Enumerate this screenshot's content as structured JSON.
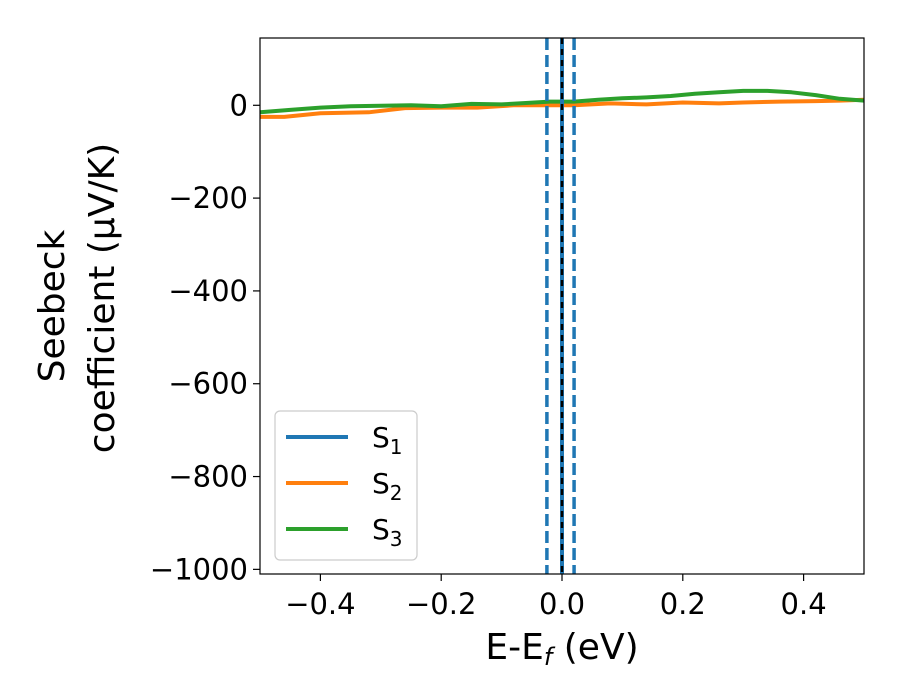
{
  "chart_data": {
    "type": "line",
    "xlabel": "E-E",
    "xlabel_sub": "f",
    "xlabel_unit": " (eV)",
    "ylabel_line1": "Seebeck",
    "ylabel_line2": "coefficient  (μV/K)",
    "xlim": [
      -0.5,
      0.5
    ],
    "ylim": [
      -1010,
      145
    ],
    "x_ticks": [
      -0.4,
      -0.2,
      0.0,
      0.2,
      0.4
    ],
    "x_tick_labels": [
      "−0.4",
      "−0.2",
      "0.0",
      "0.2",
      "0.4"
    ],
    "y_ticks": [
      0,
      -200,
      -400,
      -600,
      -800,
      -1000
    ],
    "y_tick_labels": [
      "0",
      "−200",
      "−400",
      "−600",
      "−800",
      "−1000"
    ],
    "grid": false,
    "legend_position": "lower-left",
    "series": [
      {
        "name": "S",
        "name_sub": "1",
        "color": "#1f77b4",
        "x": [],
        "y": []
      },
      {
        "name": "S",
        "name_sub": "2",
        "color": "#ff7f0e",
        "x": [
          -0.5,
          -0.46,
          -0.4,
          -0.32,
          -0.26,
          -0.2,
          -0.14,
          -0.08,
          -0.02,
          0.02,
          0.08,
          0.14,
          0.2,
          0.26,
          0.3,
          0.36,
          0.42,
          0.46,
          0.5
        ],
        "y": [
          -25,
          -25,
          -17,
          -15,
          -6,
          -5,
          -5,
          0,
          0,
          0,
          4,
          2,
          6,
          4,
          6,
          8,
          9,
          10,
          12
        ]
      },
      {
        "name": "S",
        "name_sub": "3",
        "color": "#2ca02c",
        "x": [
          -0.5,
          -0.45,
          -0.4,
          -0.35,
          -0.3,
          -0.25,
          -0.2,
          -0.15,
          -0.1,
          -0.06,
          -0.02,
          0.02,
          0.06,
          0.1,
          0.14,
          0.18,
          0.22,
          0.26,
          0.3,
          0.34,
          0.38,
          0.42,
          0.46,
          0.5
        ],
        "y": [
          -15,
          -10,
          -5,
          -2,
          -1,
          0,
          -2,
          3,
          2,
          5,
          8,
          8,
          12,
          15,
          17,
          20,
          25,
          28,
          31,
          31,
          28,
          22,
          14,
          10
        ]
      }
    ],
    "vertical_lines": [
      {
        "x": -0.025,
        "style": "dashed",
        "color": "#1f77b4"
      },
      {
        "x": 0.0,
        "style": "solid",
        "color": "#1f77b4"
      },
      {
        "x": 0.0,
        "style": "dashed",
        "color": "#000000"
      },
      {
        "x": 0.02,
        "style": "dashed",
        "color": "#1f77b4"
      }
    ]
  }
}
